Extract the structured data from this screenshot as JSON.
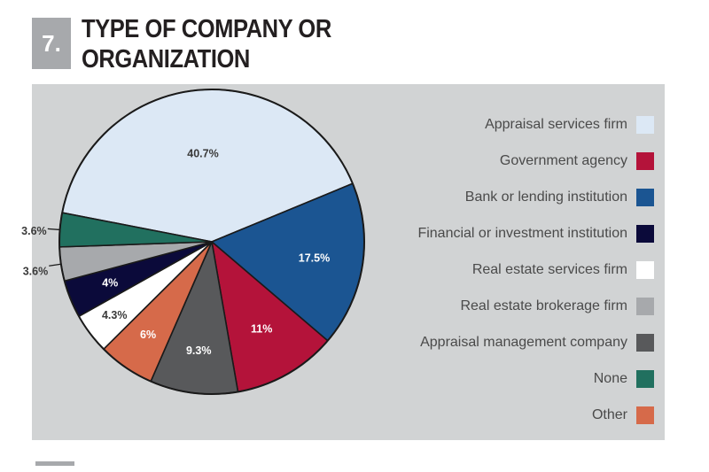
{
  "header": {
    "number": "7.",
    "title_line1": "TYPE OF COMPANY OR",
    "title_line2": "ORGANIZATION"
  },
  "chart_data": {
    "type": "pie",
    "title": "TYPE OF COMPANY OR ORGANIZATION",
    "legend_position": "right",
    "slices": [
      {
        "label": "Appraisal services firm",
        "value": 40.7,
        "display": "40.7%",
        "color": "#dce8f5",
        "label_color": "#3a3a3a"
      },
      {
        "label": "Bank or lending institution",
        "value": 17.5,
        "display": "17.5%",
        "color": "#1b5592",
        "label_color": "#ffffff"
      },
      {
        "label": "Government agency",
        "value": 11,
        "display": "11%",
        "color": "#b4133a",
        "label_color": "#ffffff"
      },
      {
        "label": "Appraisal management company",
        "value": 9.3,
        "display": "9.3%",
        "color": "#58595b",
        "label_color": "#ffffff"
      },
      {
        "label": "Other",
        "value": 6,
        "display": "6%",
        "color": "#d66a4a",
        "label_color": "#ffffff"
      },
      {
        "label": "Real estate services firm",
        "value": 4.3,
        "display": "4.3%",
        "color": "#ffffff",
        "label_color": "#3a3a3a"
      },
      {
        "label": "Financial or investment institution",
        "value": 4,
        "display": "4%",
        "color": "#0b0a3a",
        "label_color": "#ffffff"
      },
      {
        "label": "Real estate brokerage firm",
        "value": 3.6,
        "display": "3.6%",
        "color": "#a7a9ac",
        "label_color": "#3a3a3a"
      },
      {
        "label": "None",
        "value": 3.6,
        "display": "3.6%",
        "color": "#21705f",
        "label_color": "#3a3a3a"
      }
    ],
    "legend": [
      {
        "label": "Appraisal services firm",
        "color": "#dce8f5"
      },
      {
        "label": "Government agency",
        "color": "#b4133a"
      },
      {
        "label": "Bank or lending institution",
        "color": "#1b5592"
      },
      {
        "label": "Financial or investment institution",
        "color": "#0b0a3a"
      },
      {
        "label": "Real estate services firm",
        "color": "#ffffff"
      },
      {
        "label": "Real estate brokerage firm",
        "color": "#a7a9ac"
      },
      {
        "label": "Appraisal management company",
        "color": "#58595b"
      },
      {
        "label": "None",
        "color": "#21705f"
      },
      {
        "label": "Other",
        "color": "#d66a4a"
      }
    ]
  }
}
